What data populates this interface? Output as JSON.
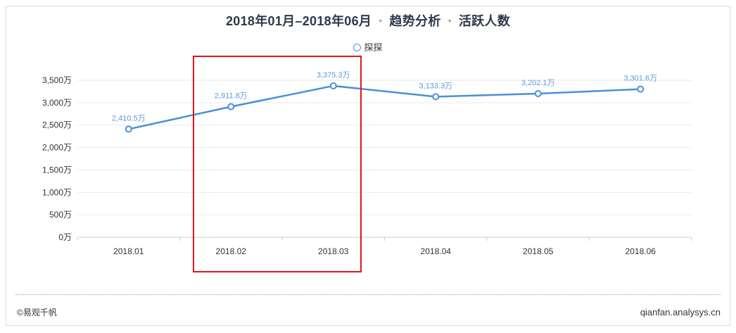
{
  "title": {
    "period": "2018年01月–2018年06月",
    "separator": "•",
    "section": "趋势分析",
    "metric": "活跃人数"
  },
  "footer": {
    "brand": "©易观千帆",
    "site": "qianfan.analysys.cn"
  },
  "colors": {
    "line": "#4a90d9",
    "label": "#5b9bd5",
    "highlight": "#e0151b"
  },
  "chart_data": {
    "type": "line",
    "title": "2018年01月–2018年06月 • 趋势分析 • 活跃人数",
    "categories": [
      "2018.01",
      "2018.02",
      "2018.03",
      "2018.04",
      "2018.05",
      "2018.06"
    ],
    "series": [
      {
        "name": "探探",
        "values": [
          2410.5,
          2911.8,
          3375.3,
          3133.3,
          3202.1,
          3301.6
        ],
        "labels": [
          "2,410.5万",
          "2,911.8万",
          "3,375.3万",
          "3,133.3万",
          "3,202.1万",
          "3,301.6万"
        ]
      }
    ],
    "yticks": [
      "0万",
      "500万",
      "1,000万",
      "1,500万",
      "2,000万",
      "2,500万",
      "3,000万",
      "3,500万"
    ],
    "ylim": [
      0,
      3500
    ],
    "grid": true,
    "legend_position": "top-center",
    "highlighted_categories": [
      "2018.02",
      "2018.03"
    ]
  }
}
